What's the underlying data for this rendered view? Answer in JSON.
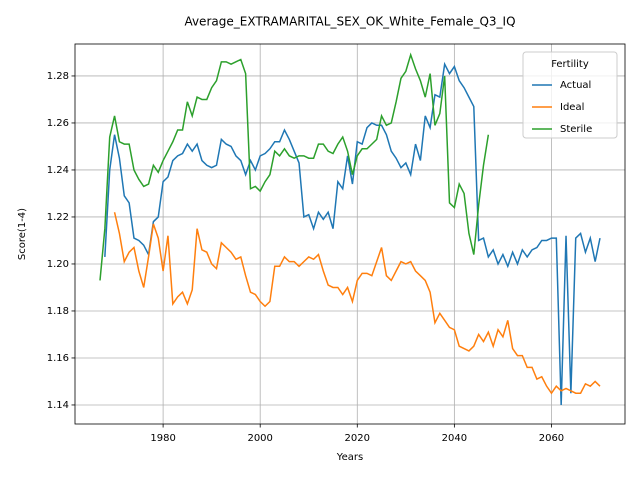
{
  "chart_data": {
    "type": "line",
    "title": "Average_EXTRAMARITAL_SEX_OK_White_Female_Q3_IQ",
    "xlabel": "Years",
    "ylabel": "Score(1-4)",
    "legend_title": "Fertility",
    "legend": "upper right",
    "grid": true,
    "x": [
      1967,
      1968,
      1969,
      1970,
      1971,
      1972,
      1973,
      1974,
      1975,
      1976,
      1977,
      1978,
      1979,
      1980,
      1981,
      1982,
      1983,
      1984,
      1985,
      1986,
      1987,
      1988,
      1989,
      1990,
      1991,
      1992,
      1993,
      1994,
      1995,
      1996,
      1997,
      1998,
      1999,
      2000,
      2001,
      2002,
      2003,
      2004,
      2005,
      2006,
      2007,
      2008,
      2009,
      2010,
      2011,
      2012,
      2013,
      2014,
      2015,
      2016,
      2017,
      2018,
      2019,
      2020,
      2021,
      2022,
      2023,
      2024,
      2025,
      2026,
      2027,
      2028,
      2029,
      2030,
      2031,
      2032,
      2033,
      2034,
      2035,
      2036,
      2037,
      2038,
      2039,
      2040,
      2041,
      2042,
      2043,
      2044,
      2045,
      2046,
      2047,
      2048,
      2049,
      2050,
      2051,
      2052,
      2053,
      2054,
      2055,
      2056,
      2057,
      2058,
      2059,
      2060,
      2061,
      2062,
      2063,
      2064,
      2065,
      2066,
      2067,
      2068,
      2069,
      2070
    ],
    "series": [
      {
        "name": "Actual",
        "color": "#1f77b4",
        "values": [
          null,
          1.203,
          1.24,
          1.255,
          1.245,
          1.229,
          1.226,
          1.211,
          1.21,
          1.208,
          1.204,
          1.218,
          1.22,
          1.235,
          1.237,
          1.244,
          1.246,
          1.247,
          1.251,
          1.248,
          1.251,
          1.244,
          1.242,
          1.241,
          1.242,
          1.253,
          1.251,
          1.25,
          1.246,
          1.244,
          1.238,
          1.244,
          1.24,
          1.246,
          1.247,
          1.249,
          1.252,
          1.252,
          1.257,
          1.253,
          1.248,
          1.243,
          1.22,
          1.221,
          1.215,
          1.222,
          1.219,
          1.222,
          1.215,
          1.235,
          1.232,
          1.246,
          1.234,
          1.252,
          1.251,
          1.258,
          1.26,
          1.259,
          1.259,
          1.255,
          1.248,
          1.245,
          1.241,
          1.243,
          1.238,
          1.251,
          1.244,
          1.263,
          1.258,
          1.272,
          1.271,
          1.285,
          1.281,
          1.284,
          1.278,
          1.275,
          1.271,
          1.267,
          1.21,
          1.211,
          1.203,
          1.206,
          1.2,
          1.204,
          1.199,
          1.205,
          1.2,
          1.206,
          1.203,
          1.206,
          1.207,
          1.21,
          1.21,
          1.211,
          1.211,
          1.14,
          1.212,
          1.145,
          1.211,
          1.213,
          1.205,
          1.211,
          1.201,
          1.211
        ]
      },
      {
        "name": "Ideal",
        "color": "#ff7f0e",
        "values": [
          null,
          null,
          null,
          1.222,
          1.213,
          1.201,
          1.205,
          1.207,
          1.197,
          1.19,
          1.203,
          1.217,
          1.211,
          1.197,
          1.212,
          1.183,
          1.186,
          1.188,
          1.183,
          1.189,
          1.215,
          1.206,
          1.205,
          1.2,
          1.198,
          1.209,
          1.207,
          1.205,
          1.202,
          1.203,
          1.195,
          1.188,
          1.187,
          1.184,
          1.182,
          1.184,
          1.199,
          1.199,
          1.203,
          1.201,
          1.201,
          1.199,
          1.201,
          1.203,
          1.202,
          1.204,
          1.197,
          1.191,
          1.19,
          1.19,
          1.187,
          1.19,
          1.184,
          1.193,
          1.196,
          1.196,
          1.195,
          1.201,
          1.207,
          1.195,
          1.193,
          1.197,
          1.201,
          1.2,
          1.201,
          1.197,
          1.195,
          1.193,
          1.188,
          1.175,
          1.179,
          1.176,
          1.173,
          1.172,
          1.165,
          1.164,
          1.163,
          1.165,
          1.17,
          1.167,
          1.171,
          1.165,
          1.172,
          1.169,
          1.176,
          1.164,
          1.161,
          1.161,
          1.156,
          1.156,
          1.151,
          1.152,
          1.148,
          1.145,
          1.148,
          1.146,
          1.147,
          1.146,
          1.145,
          1.145,
          1.149,
          1.148,
          1.15,
          1.148
        ]
      },
      {
        "name": "Sterile",
        "color": "#2ca02c",
        "values": [
          1.193,
          1.215,
          1.254,
          1.263,
          1.252,
          1.251,
          1.251,
          1.24,
          1.236,
          1.233,
          1.234,
          1.242,
          1.239,
          1.244,
          1.248,
          1.252,
          1.257,
          1.257,
          1.269,
          1.263,
          1.271,
          1.27,
          1.27,
          1.275,
          1.278,
          1.286,
          1.286,
          1.285,
          1.286,
          1.287,
          1.281,
          1.232,
          1.233,
          1.231,
          1.235,
          1.238,
          1.248,
          1.246,
          1.249,
          1.246,
          1.245,
          1.246,
          1.246,
          1.245,
          1.245,
          1.251,
          1.251,
          1.248,
          1.247,
          1.251,
          1.254,
          1.248,
          1.238,
          1.246,
          1.249,
          1.249,
          1.251,
          1.253,
          1.263,
          1.259,
          1.26,
          1.269,
          1.279,
          1.282,
          1.289,
          1.283,
          1.278,
          1.271,
          1.281,
          1.259,
          1.264,
          1.28,
          1.226,
          1.224,
          1.234,
          1.23,
          1.213,
          1.204,
          1.225,
          1.242,
          1.255,
          null,
          null,
          null,
          null,
          null,
          null,
          null,
          null,
          null,
          null,
          null,
          null,
          null,
          null,
          null,
          null,
          null,
          null,
          null,
          null,
          null,
          null,
          null
        ]
      }
    ],
    "xlim": [
      1961.85,
      2075.15
    ],
    "xticks": [
      1980,
      2000,
      2020,
      2040,
      2060
    ],
    "ylim": [
      1.1319,
      1.2936
    ],
    "yticks": [
      1.14,
      1.16,
      1.18,
      {
        "value": 1.2,
        "label": "1.20"
      },
      1.22,
      1.24,
      1.26,
      1.28
    ]
  }
}
